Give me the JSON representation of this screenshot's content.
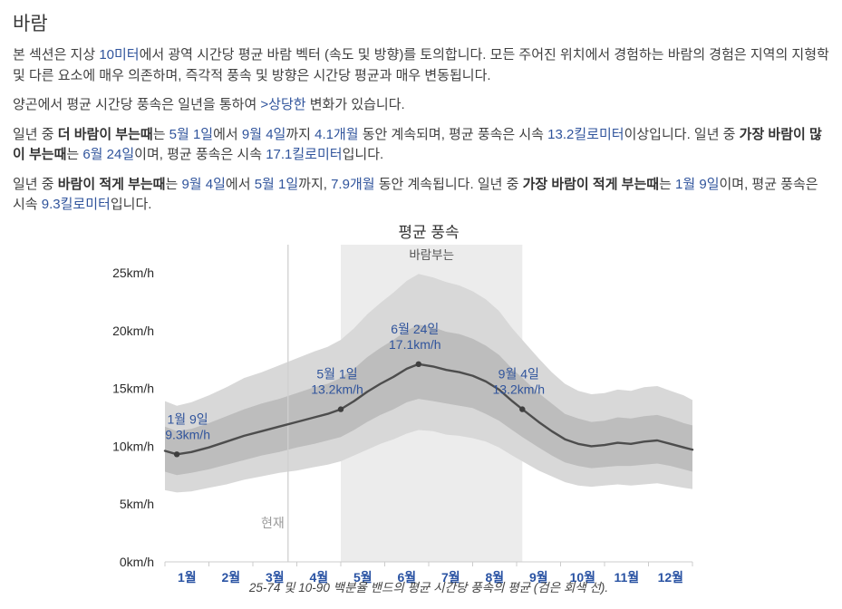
{
  "title": "바람",
  "colors": {
    "accent": "#30549c",
    "body_text": "#3f3f3f",
    "emphasis_text": "#333333"
  },
  "paragraphs": [
    [
      {
        "t": "본 섹션은 지상 "
      },
      {
        "t": "10미터",
        "hl": true
      },
      {
        "t": "에서 광역 시간당 평균 바람 벡터 (속도 및 방향)를 토의합니다. 모든 주어진 위치에서 경험하는 바람의 경험은 지역의 지형학 및 다른 요소에 매우 의존하며, 즉각적 풍속 및 방향은 시간당 평균과 매우 변동됩니다."
      }
    ],
    [
      {
        "t": "양곤에서 평균 시간당 풍속은 일년을 통하여 "
      },
      {
        "t": ">상당한",
        "hl": true
      },
      {
        "t": " 변화가 있습니다."
      }
    ],
    [
      {
        "t": "일년 중 "
      },
      {
        "t": "더 바람이 부는때",
        "b": true
      },
      {
        "t": "는 "
      },
      {
        "t": "5월 1일",
        "hl": true
      },
      {
        "t": "에서 "
      },
      {
        "t": "9월 4일",
        "hl": true
      },
      {
        "t": "까지 "
      },
      {
        "t": "4.1개월",
        "hl": true
      },
      {
        "t": " 동안 계속되며, 평균 풍속은 시속 "
      },
      {
        "t": "13.2킬로미터",
        "hl": true
      },
      {
        "t": "이상입니다. 일년 중 "
      },
      {
        "t": "가장 바람이 많이 부는때",
        "b": true
      },
      {
        "t": "는 "
      },
      {
        "t": "6월 24일",
        "hl": true
      },
      {
        "t": "이며, 평균 풍속은 시속 "
      },
      {
        "t": "17.1킬로미터",
        "hl": true
      },
      {
        "t": "입니다."
      }
    ],
    [
      {
        "t": "일년 중 "
      },
      {
        "t": "바람이 적게 부는때",
        "b": true
      },
      {
        "t": "는 "
      },
      {
        "t": "9월 4일",
        "hl": true
      },
      {
        "t": "에서 "
      },
      {
        "t": "5월 1일",
        "hl": true
      },
      {
        "t": "까지, "
      },
      {
        "t": "7.9개월",
        "hl": true
      },
      {
        "t": " 동안 계속됩니다. 일년 중 "
      },
      {
        "t": "가장 바람이 적게 부는때",
        "b": true
      },
      {
        "t": "는 "
      },
      {
        "t": "1월 9일",
        "hl": true
      },
      {
        "t": "이며, 평균 풍속은 시속 "
      },
      {
        "t": "9.3킬로미터",
        "hl": true
      },
      {
        "t": "입니다."
      }
    ]
  ],
  "chart_data": {
    "type": "line",
    "title": "평균 풍속",
    "caption": "25-74 및 10-90 백분율 밴드의 평균 시간당 풍속의 평균 (검은 회색 선).",
    "y_unit": "km/h",
    "ylim": [
      0,
      27.4
    ],
    "yticks": [
      0,
      5,
      10,
      15,
      20,
      25
    ],
    "xticks": [
      "1월",
      "2월",
      "3월",
      "4월",
      "5월",
      "6월",
      "7월",
      "8월",
      "9월",
      "10월",
      "11월",
      "12월"
    ],
    "grid": false,
    "legend": "none",
    "x": [
      0,
      0.27,
      0.6,
      1.0,
      1.4,
      1.8,
      2.2,
      2.6,
      3.0,
      3.4,
      3.7,
      4.0,
      4.3,
      4.6,
      4.9,
      5.2,
      5.5,
      5.77,
      6.1,
      6.4,
      6.7,
      7.0,
      7.3,
      7.6,
      7.9,
      8.13,
      8.5,
      8.8,
      9.1,
      9.4,
      9.7,
      10.0,
      10.3,
      10.6,
      10.9,
      11.2,
      11.5,
      11.8,
      12.0
    ],
    "mean": [
      9.6,
      9.3,
      9.5,
      9.9,
      10.4,
      10.9,
      11.3,
      11.7,
      12.1,
      12.5,
      12.8,
      13.2,
      13.9,
      14.7,
      15.4,
      16.0,
      16.7,
      17.1,
      16.9,
      16.6,
      16.4,
      16.1,
      15.6,
      14.9,
      13.9,
      13.2,
      12.1,
      11.3,
      10.6,
      10.2,
      10.0,
      10.1,
      10.3,
      10.2,
      10.4,
      10.5,
      10.2,
      9.9,
      9.7
    ],
    "p25": [
      7.8,
      7.5,
      7.7,
      8.0,
      8.4,
      8.8,
      9.2,
      9.5,
      9.9,
      10.2,
      10.5,
      10.8,
      11.4,
      12.1,
      12.7,
      13.2,
      13.8,
      14.1,
      13.9,
      13.7,
      13.5,
      13.3,
      12.8,
      12.2,
      11.4,
      10.8,
      9.9,
      9.2,
      8.6,
      8.3,
      8.1,
      8.2,
      8.3,
      8.3,
      8.4,
      8.5,
      8.3,
      8.0,
      7.8
    ],
    "p75": [
      11.7,
      11.3,
      11.5,
      12.0,
      12.6,
      13.2,
      13.7,
      14.1,
      14.6,
      15.1,
      15.4,
      15.9,
      16.7,
      17.7,
      18.5,
      19.2,
      20.0,
      20.5,
      20.3,
      19.9,
      19.7,
      19.3,
      18.7,
      17.9,
      16.7,
      15.9,
      14.6,
      13.7,
      12.8,
      12.4,
      12.1,
      12.2,
      12.5,
      12.4,
      12.6,
      12.7,
      12.4,
      12.0,
      11.8
    ],
    "p10": [
      6.2,
      6.0,
      6.1,
      6.4,
      6.7,
      7.1,
      7.4,
      7.7,
      7.9,
      8.2,
      8.4,
      8.7,
      9.2,
      9.7,
      10.2,
      10.6,
      11.1,
      11.4,
      11.3,
      11.0,
      10.9,
      10.7,
      10.4,
      9.9,
      9.2,
      8.7,
      7.9,
      7.4,
      6.9,
      6.6,
      6.5,
      6.6,
      6.7,
      6.6,
      6.7,
      6.8,
      6.6,
      6.4,
      6.3
    ],
    "p90": [
      13.9,
      13.5,
      13.8,
      14.4,
      15.1,
      15.9,
      16.4,
      17.0,
      17.6,
      18.2,
      18.6,
      19.2,
      20.2,
      21.4,
      22.4,
      23.3,
      24.3,
      24.9,
      24.6,
      24.2,
      23.9,
      23.4,
      22.7,
      21.7,
      20.2,
      19.2,
      17.6,
      16.4,
      15.4,
      14.8,
      14.5,
      14.6,
      14.9,
      14.8,
      15.1,
      15.2,
      14.8,
      14.4,
      14.0
    ],
    "windy_season": {
      "label": "바람부는",
      "start": 4.0,
      "end": 8.13
    },
    "now": {
      "label": "현재",
      "x": 2.8
    },
    "annotations": [
      {
        "date": "1월 9일",
        "value": "9.3km/h",
        "x": 0.27,
        "v": 9.3,
        "dx": 12
      },
      {
        "date": "5월 1일",
        "value": "13.2km/h",
        "x": 4.0,
        "v": 13.2,
        "dx": -4
      },
      {
        "date": "6월 24일",
        "value": "17.1km/h",
        "x": 5.77,
        "v": 17.1,
        "dx": -4
      },
      {
        "date": "9월 4일",
        "value": "13.2km/h",
        "x": 8.13,
        "v": 13.2,
        "dx": -4
      }
    ],
    "colors": {
      "season_band": "#ececec",
      "season_label": "#555555",
      "outer_band": "#d8d8d8",
      "inner_band": "#bdbdbd",
      "mean_line": "#4d4d4d",
      "dot": "#3f3f3f",
      "annotation": "#30549c",
      "xtick": "#2a53a3",
      "ytick": "#2b2b2b",
      "now_line": "#d0d0d0",
      "now_label": "#9a9a9a",
      "axis_line": "#cccccc",
      "title": "#333333",
      "caption": "#444444"
    }
  }
}
